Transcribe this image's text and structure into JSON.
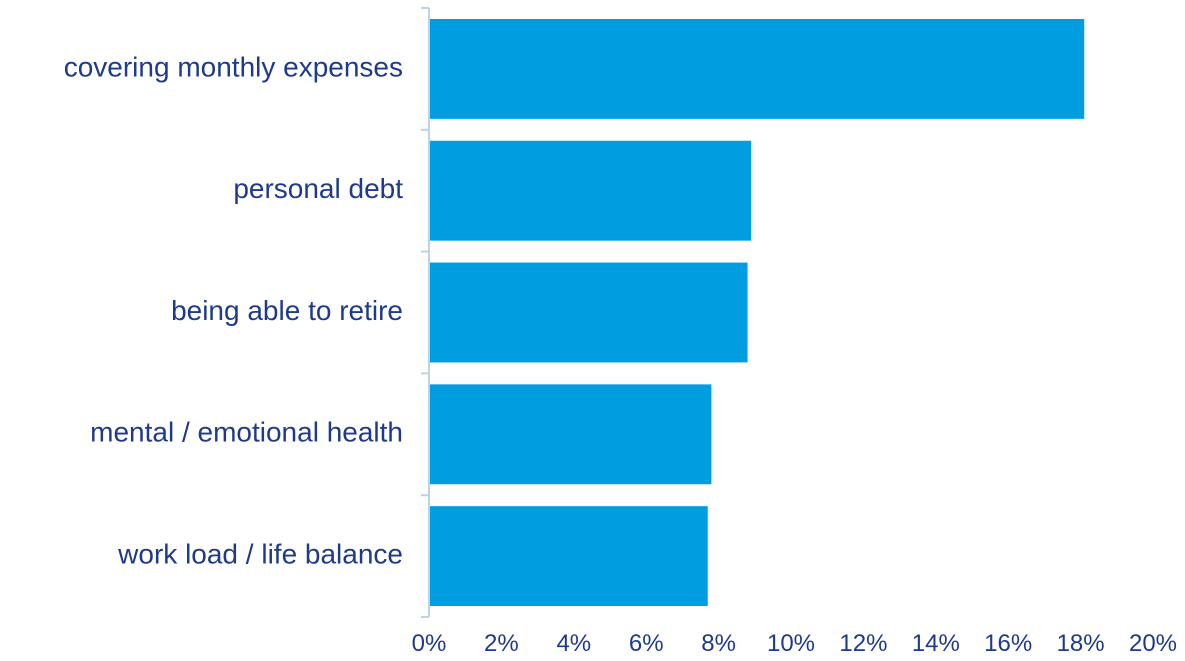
{
  "colors": {
    "bar": "#009EE0",
    "label_text": "#1F3A8A",
    "axis_line": "#B9D3E8"
  },
  "chart_data": {
    "type": "bar",
    "orientation": "horizontal",
    "categories": [
      "covering monthly expenses",
      "personal debt",
      "being able to retire",
      "mental / emotional health",
      "work load / life balance"
    ],
    "values": [
      18.1,
      8.9,
      8.8,
      7.8,
      7.7
    ],
    "xlim": [
      0,
      20
    ],
    "x_ticks": [
      "0%",
      "2%",
      "4%",
      "6%",
      "8%",
      "10%",
      "12%",
      "14%",
      "16%",
      "18%",
      "20%"
    ],
    "title": "",
    "xlabel": "",
    "ylabel": "",
    "grid": false,
    "legend": false
  }
}
